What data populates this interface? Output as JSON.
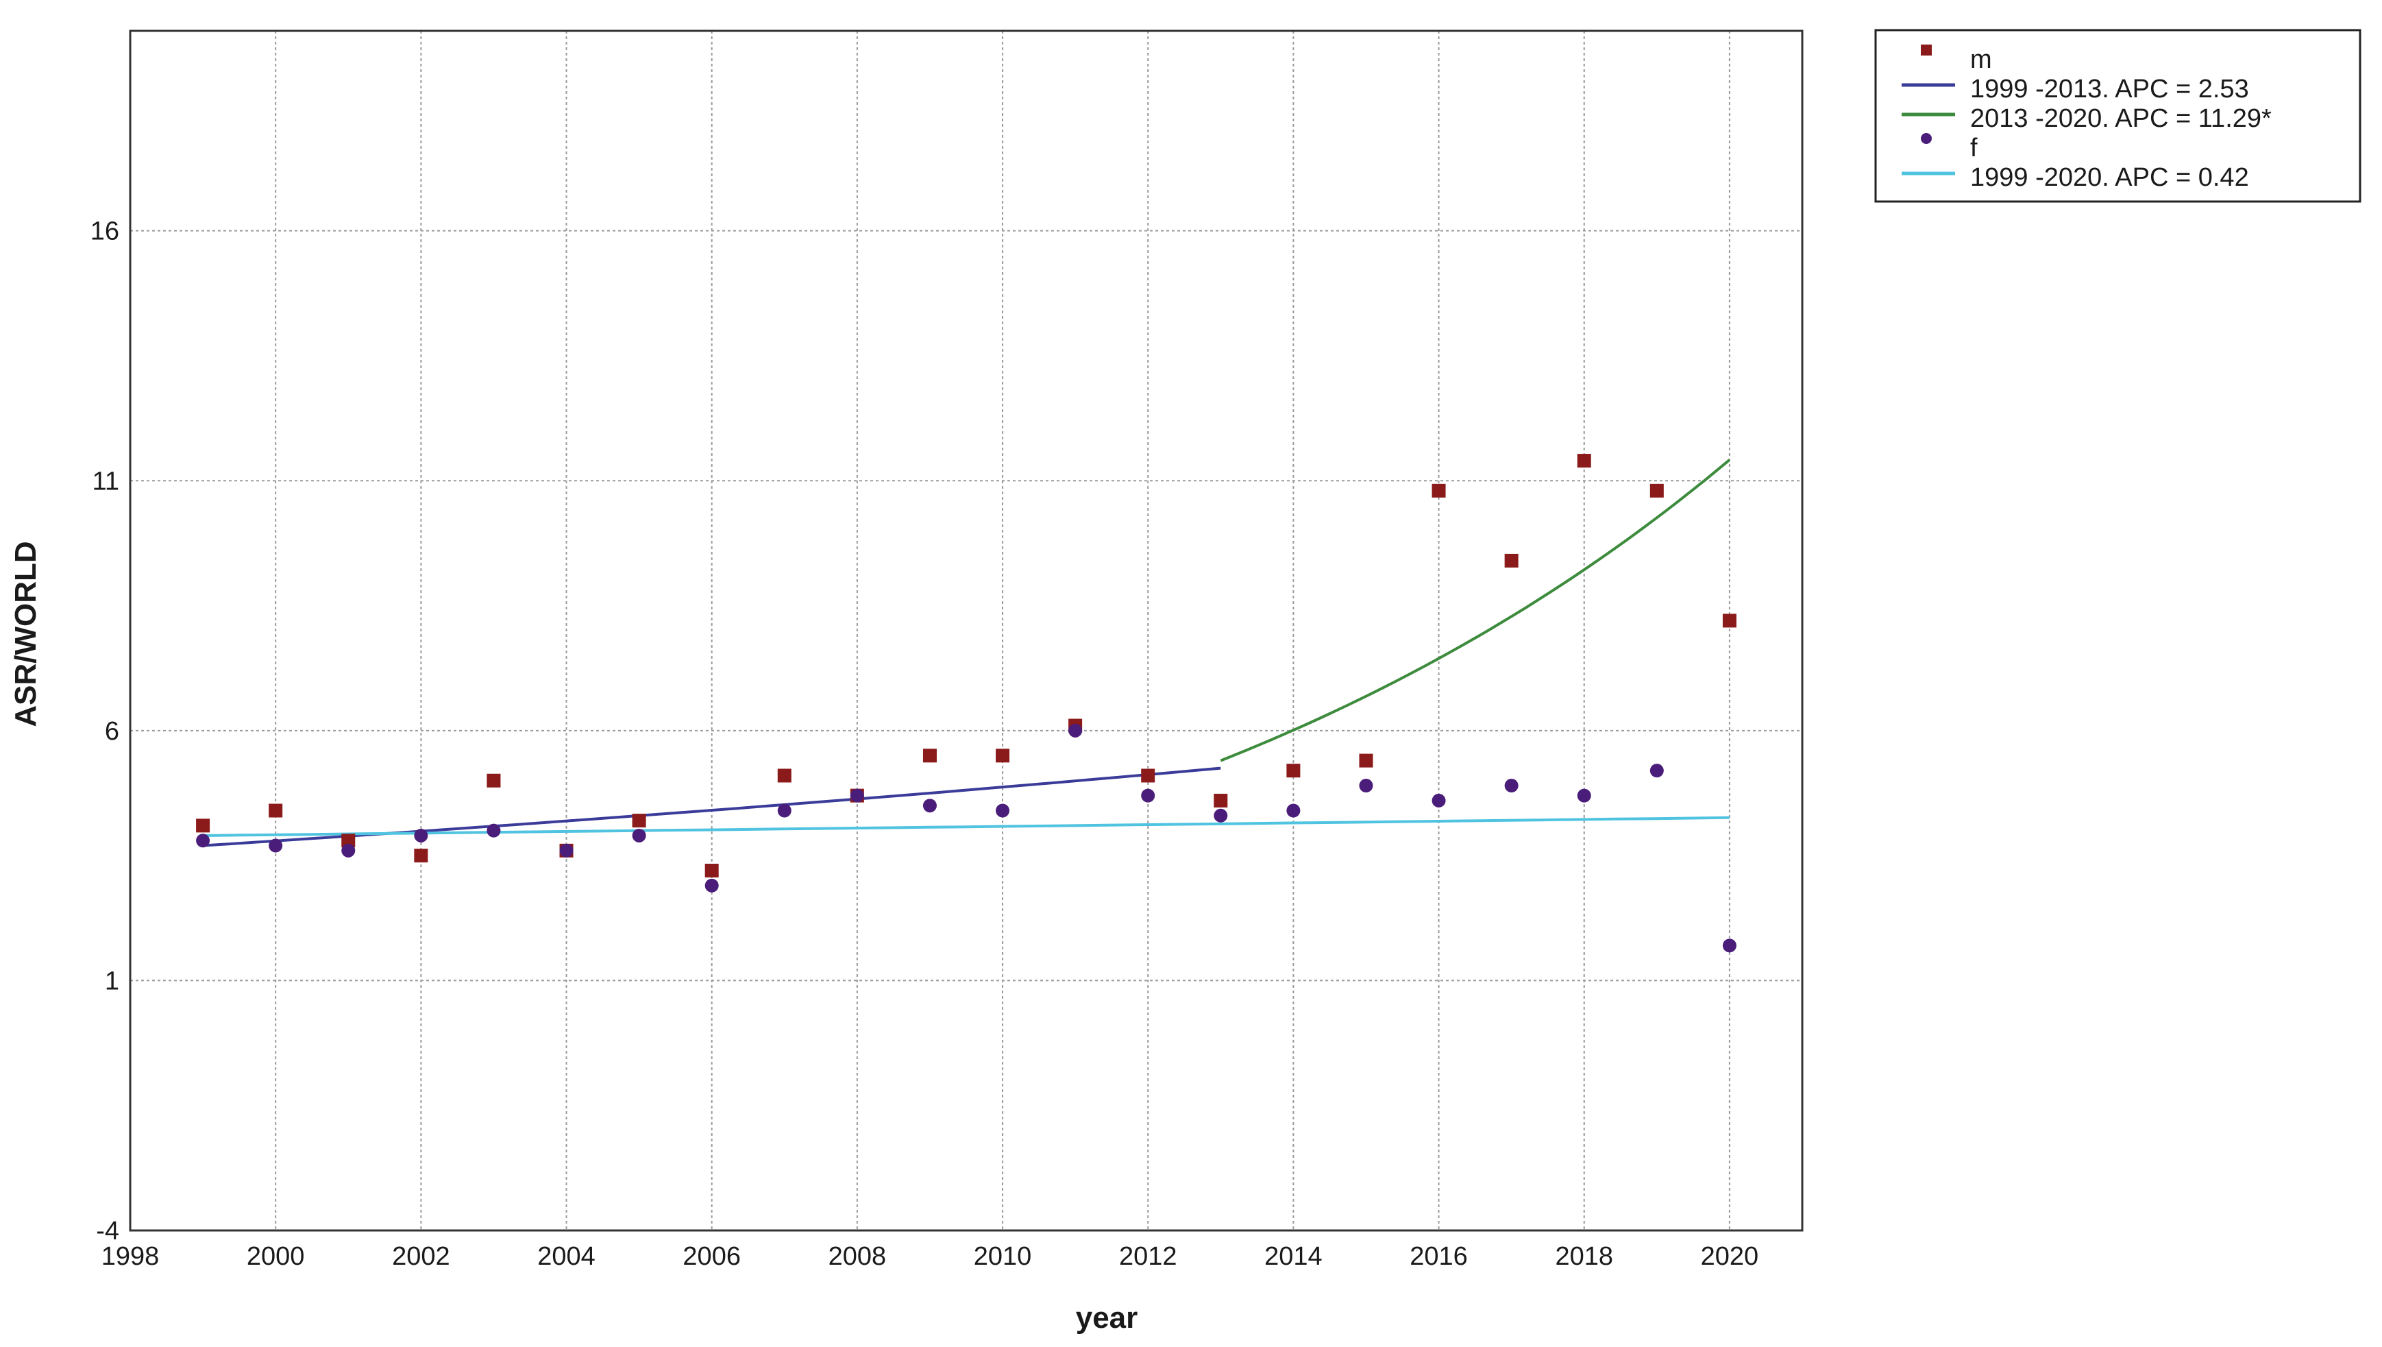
{
  "chart_data": {
    "type": "scatter",
    "title": "",
    "xlabel": "year",
    "ylabel": "ASR/WORLD",
    "xlim": [
      1998,
      2021
    ],
    "ylim": [
      -4,
      20
    ],
    "xticks": [
      1998,
      2000,
      2002,
      2004,
      2006,
      2008,
      2010,
      2012,
      2014,
      2016,
      2018,
      2020
    ],
    "yticks": [
      -4,
      1,
      6,
      11,
      16
    ],
    "grid": true,
    "legend_position": "top-right, outside plot",
    "series": [
      {
        "name": "m",
        "kind": "points",
        "marker": "square",
        "color": "#8b1a1a",
        "x": [
          1999,
          2000,
          2001,
          2002,
          2003,
          2004,
          2005,
          2006,
          2007,
          2008,
          2009,
          2010,
          2011,
          2012,
          2013,
          2014,
          2015,
          2016,
          2017,
          2018,
          2019,
          2020
        ],
        "y": [
          4.1,
          4.4,
          3.8,
          3.5,
          5.0,
          3.6,
          4.2,
          3.2,
          5.1,
          4.7,
          5.5,
          5.5,
          6.1,
          5.1,
          4.6,
          5.2,
          5.4,
          10.8,
          9.4,
          11.4,
          10.8,
          8.2
        ]
      },
      {
        "name": "1999 -2013. APC = 2.53",
        "kind": "fit",
        "color": "#3b3b9a",
        "x": [
          1999,
          2013
        ],
        "y": [
          3.7,
          5.4
        ],
        "apc": 2.53,
        "segment_start": 1999
      },
      {
        "name": "2013 -2020. APC = 11.29*",
        "kind": "fit",
        "color": "#3d8b3d",
        "x": [
          2013,
          2020
        ],
        "y": [
          5.4,
          11.4
        ],
        "apc": 11.29,
        "segment_start": 2013
      },
      {
        "name": "f",
        "kind": "points",
        "marker": "circle",
        "color": "#4b1d7a",
        "x": [
          1999,
          2000,
          2001,
          2002,
          2003,
          2004,
          2005,
          2006,
          2007,
          2008,
          2009,
          2010,
          2011,
          2012,
          2013,
          2014,
          2015,
          2016,
          2017,
          2018,
          2019,
          2020
        ],
        "y": [
          3.8,
          3.7,
          3.6,
          3.9,
          4.0,
          3.6,
          3.9,
          2.9,
          4.4,
          4.7,
          4.5,
          4.4,
          6.0,
          4.7,
          4.3,
          4.4,
          4.9,
          4.6,
          4.9,
          4.7,
          5.2,
          1.7
        ]
      },
      {
        "name": "1999 -2020. APC = 0.42",
        "kind": "fit",
        "color": "#4fc3e0",
        "x": [
          1999,
          2020
        ],
        "y": [
          3.9,
          4.3
        ],
        "apc": 0.42,
        "segment_start": 1999
      }
    ]
  }
}
